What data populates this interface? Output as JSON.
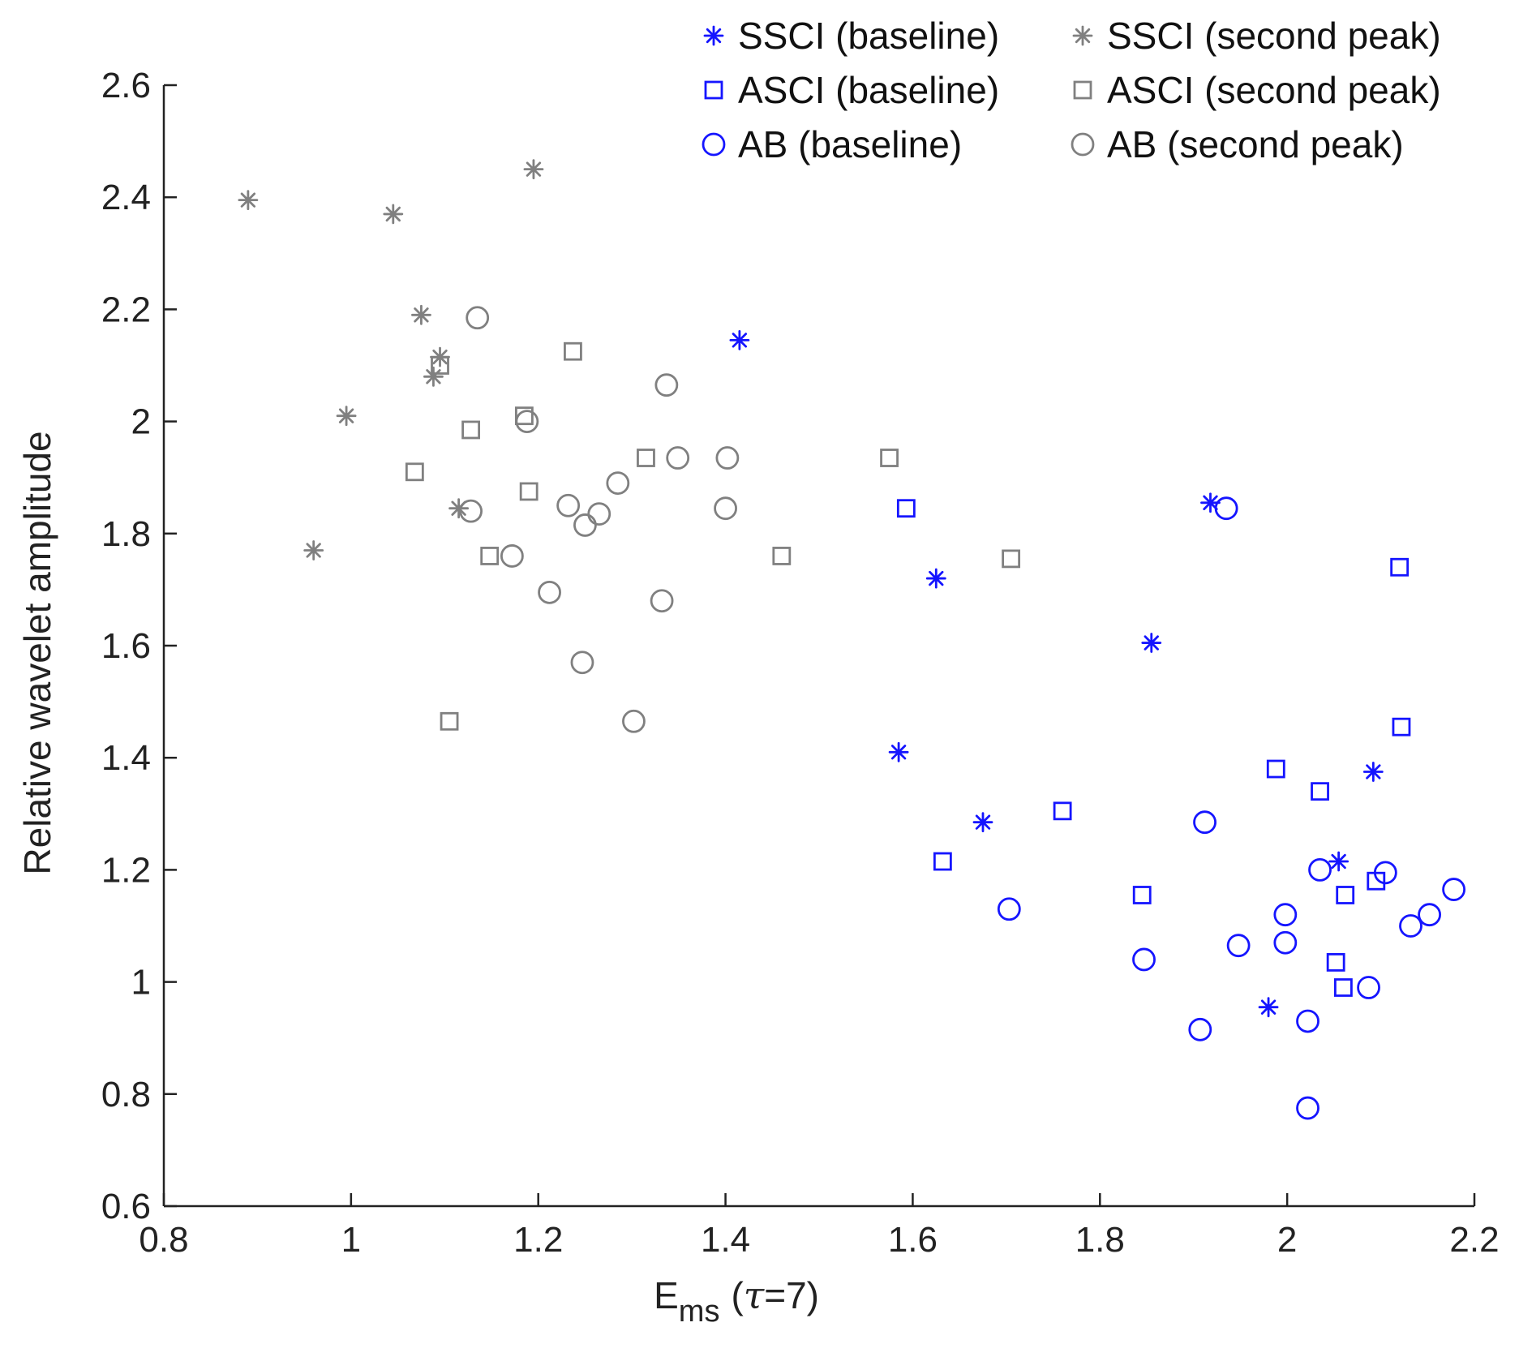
{
  "chart_data": {
    "type": "scatter",
    "xlabel": {
      "main": "E",
      "sub": "ms",
      "paren": "(",
      "greek": "τ",
      "rest": "=7)"
    },
    "ylabel": "Relative wavelet amplitude",
    "xlim": [
      0.8,
      2.2
    ],
    "ylim": [
      0.6,
      2.6
    ],
    "xticks": [
      0.8,
      1,
      1.2,
      1.4,
      1.6,
      1.8,
      2,
      2.2
    ],
    "xtick_labels": [
      "0.8",
      "1",
      "1.2",
      "1.4",
      "1.6",
      "1.8",
      "2",
      "2.2"
    ],
    "yticks": [
      0.6,
      0.8,
      1,
      1.2,
      1.4,
      1.6,
      1.8,
      2,
      2.2,
      2.4,
      2.6
    ],
    "ytick_labels": [
      "0.6",
      "0.8",
      "1",
      "1.2",
      "1.4",
      "1.6",
      "1.8",
      "2",
      "2.2",
      "2.4",
      "2.6"
    ],
    "grid": false,
    "legend_position": "top-right",
    "colors": {
      "baseline": "#1515ff",
      "second_peak": "#808080",
      "axis": "#222222"
    },
    "series": [
      {
        "name": "SSCI (baseline)",
        "marker": "asterisk",
        "color": "#1515ff",
        "points": [
          [
            1.415,
            2.145
          ],
          [
            1.918,
            1.855
          ],
          [
            1.625,
            1.72
          ],
          [
            1.855,
            1.605
          ],
          [
            1.585,
            1.41
          ],
          [
            1.675,
            1.285
          ],
          [
            2.092,
            1.375
          ],
          [
            2.055,
            1.215
          ],
          [
            1.98,
            0.955
          ]
        ]
      },
      {
        "name": "SSCI (second peak)",
        "marker": "asterisk",
        "color": "#808080",
        "points": [
          [
            0.89,
            2.395
          ],
          [
            1.045,
            2.37
          ],
          [
            1.195,
            2.45
          ],
          [
            1.075,
            2.19
          ],
          [
            1.095,
            2.115
          ],
          [
            1.088,
            2.08
          ],
          [
            0.995,
            2.01
          ],
          [
            1.115,
            1.845
          ],
          [
            0.96,
            1.77
          ]
        ]
      },
      {
        "name": "ASCI (baseline)",
        "marker": "square",
        "color": "#1515ff",
        "points": [
          [
            1.593,
            1.845
          ],
          [
            2.12,
            1.74
          ],
          [
            2.122,
            1.455
          ],
          [
            1.988,
            1.38
          ],
          [
            2.035,
            1.34
          ],
          [
            1.76,
            1.305
          ],
          [
            1.632,
            1.215
          ],
          [
            1.845,
            1.155
          ],
          [
            2.062,
            1.155
          ],
          [
            2.095,
            1.18
          ],
          [
            2.052,
            1.035
          ],
          [
            2.06,
            0.99
          ]
        ]
      },
      {
        "name": "ASCI (second peak)",
        "marker": "square",
        "color": "#808080",
        "points": [
          [
            1.095,
            2.1
          ],
          [
            1.237,
            2.125
          ],
          [
            1.128,
            1.985
          ],
          [
            1.185,
            2.01
          ],
          [
            1.068,
            1.91
          ],
          [
            1.19,
            1.875
          ],
          [
            1.315,
            1.935
          ],
          [
            1.575,
            1.935
          ],
          [
            1.148,
            1.76
          ],
          [
            1.46,
            1.76
          ],
          [
            1.705,
            1.755
          ],
          [
            1.105,
            1.465
          ]
        ]
      },
      {
        "name": "AB (baseline)",
        "marker": "circle",
        "color": "#1515ff",
        "points": [
          [
            1.935,
            1.845
          ],
          [
            1.912,
            1.285
          ],
          [
            1.703,
            1.13
          ],
          [
            2.035,
            1.2
          ],
          [
            2.105,
            1.195
          ],
          [
            2.178,
            1.165
          ],
          [
            1.998,
            1.12
          ],
          [
            2.152,
            1.12
          ],
          [
            2.132,
            1.1
          ],
          [
            1.948,
            1.065
          ],
          [
            1.998,
            1.07
          ],
          [
            1.847,
            1.04
          ],
          [
            2.087,
            0.99
          ],
          [
            1.907,
            0.915
          ],
          [
            2.022,
            0.93
          ],
          [
            2.022,
            0.775
          ]
        ]
      },
      {
        "name": "AB (second peak)",
        "marker": "circle",
        "color": "#808080",
        "points": [
          [
            1.135,
            2.185
          ],
          [
            1.337,
            2.065
          ],
          [
            1.188,
            2.0
          ],
          [
            1.402,
            1.935
          ],
          [
            1.349,
            1.935
          ],
          [
            1.285,
            1.89
          ],
          [
            1.128,
            1.84
          ],
          [
            1.232,
            1.85
          ],
          [
            1.4,
            1.845
          ],
          [
            1.265,
            1.835
          ],
          [
            1.25,
            1.815
          ],
          [
            1.172,
            1.76
          ],
          [
            1.212,
            1.695
          ],
          [
            1.332,
            1.68
          ],
          [
            1.247,
            1.57
          ],
          [
            1.302,
            1.465
          ]
        ]
      }
    ]
  }
}
